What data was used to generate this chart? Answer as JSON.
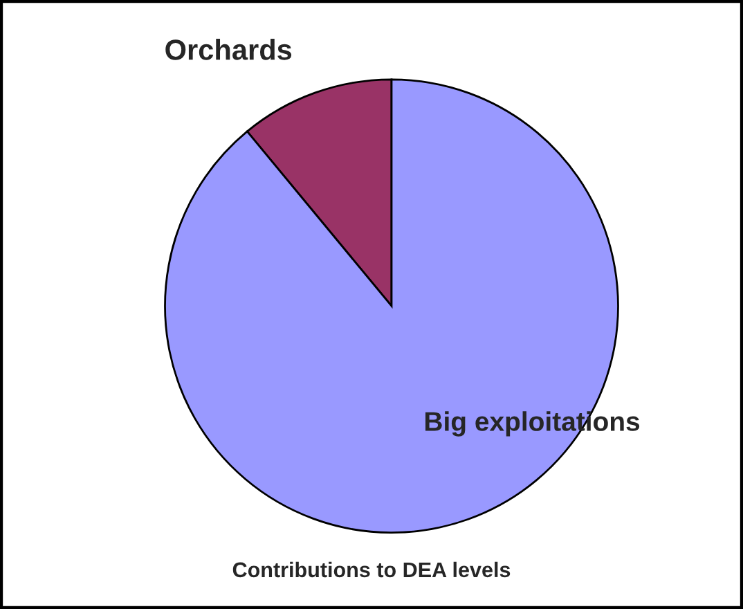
{
  "chart_data": {
    "type": "pie",
    "title": "Contributions to DEA levels",
    "categories": [
      "Orchards",
      "Big exploitations"
    ],
    "values": [
      11,
      89
    ],
    "colors": [
      "#993366",
      "#9999ff"
    ]
  }
}
